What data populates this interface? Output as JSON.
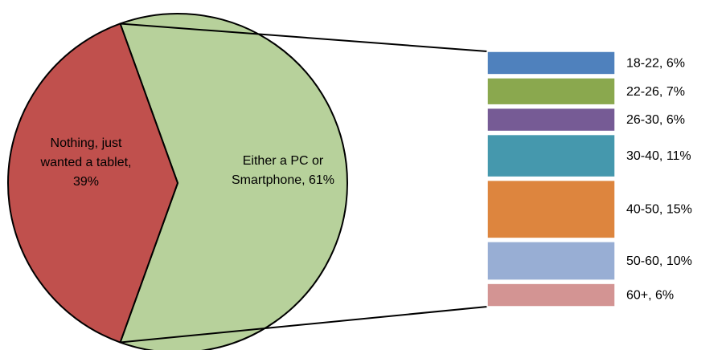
{
  "chart_data": {
    "type": "bar-of-pie",
    "pie": {
      "slices": [
        {
          "label_lines": [
            "Either a PC or",
            "Smartphone, 61%"
          ],
          "value": 61,
          "color": "#b7d19b"
        },
        {
          "label_lines": [
            "Nothing, just",
            "wanted a tablet,",
            "39%"
          ],
          "value": 39,
          "color": "#c0504d"
        }
      ]
    },
    "bar": {
      "parent_slice": "Either a PC or Smartphone, 61%",
      "segments": [
        {
          "label": "18-22, 6%",
          "value": 6,
          "color": "#4f81bd"
        },
        {
          "label": "22-26, 7%",
          "value": 7,
          "color": "#8aa84e"
        },
        {
          "label": "26-30, 6%",
          "value": 6,
          "color": "#765b95"
        },
        {
          "label": "30-40, 11%",
          "value": 11,
          "color": "#4598ad"
        },
        {
          "label": "40-50, 15%",
          "value": 15,
          "color": "#dd853e"
        },
        {
          "label": "50-60, 10%",
          "value": 10,
          "color": "#98aed4"
        },
        {
          "label": "60+, 6%",
          "value": 6,
          "color": "#d39493"
        }
      ]
    }
  }
}
